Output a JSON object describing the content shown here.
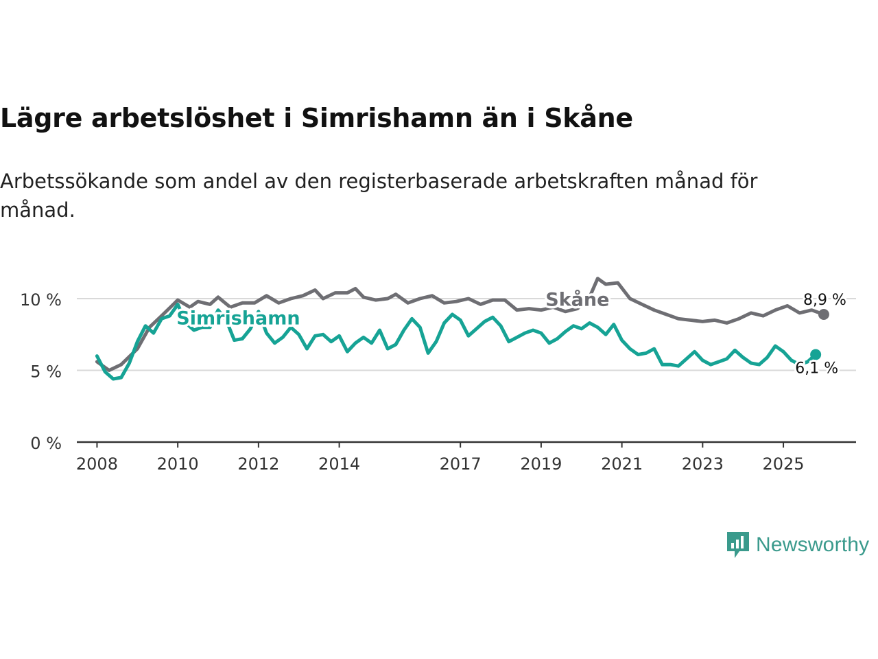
{
  "title": "Lägre arbetslöshet i Simrishamn än i Skåne",
  "subtitle": "Arbetssökande som andel av den registerbaserade arbetskraften månad för månad.",
  "brand": {
    "name": "Newsworthy",
    "color": "#3a9a8c"
  },
  "chart_data": {
    "type": "line",
    "x_unit": "year",
    "xlim": [
      2007.5,
      2026.8
    ],
    "ylim": [
      0,
      12
    ],
    "y_ticks": [
      0,
      5,
      10
    ],
    "y_tick_labels": [
      "0 %",
      "5 %",
      "10 %"
    ],
    "x_ticks": [
      2008,
      2010,
      2012,
      2014,
      2017,
      2019,
      2021,
      2023,
      2025
    ],
    "x_tick_labels": [
      "2008",
      "2010",
      "2012",
      "2014",
      "2017",
      "2019",
      "2021",
      "2023",
      "2025"
    ],
    "grid": true,
    "series": [
      {
        "name": "Skåne",
        "color": "#6e6e73",
        "label_at": [
          2019.9,
          9.5
        ],
        "end_label": "8,9 %",
        "x": [
          2008.0,
          2008.3,
          2008.6,
          2009.0,
          2009.3,
          2009.6,
          2010.0,
          2010.3,
          2010.5,
          2010.8,
          2011.0,
          2011.3,
          2011.6,
          2011.9,
          2012.2,
          2012.5,
          2012.8,
          2013.1,
          2013.4,
          2013.6,
          2013.9,
          2014.2,
          2014.4,
          2014.6,
          2014.9,
          2015.2,
          2015.4,
          2015.7,
          2016.0,
          2016.3,
          2016.6,
          2016.9,
          2017.2,
          2017.5,
          2017.8,
          2018.1,
          2018.4,
          2018.7,
          2019.0,
          2019.3,
          2019.6,
          2019.9,
          2020.2,
          2020.4,
          2020.6,
          2020.9,
          2021.2,
          2021.5,
          2021.8,
          2022.1,
          2022.4,
          2022.7,
          2023.0,
          2023.3,
          2023.6,
          2023.9,
          2024.2,
          2024.5,
          2024.8,
          2025.1,
          2025.4,
          2025.7,
          2026.0
        ],
        "values": [
          5.6,
          5.0,
          5.4,
          6.5,
          8.0,
          8.8,
          9.9,
          9.4,
          9.8,
          9.6,
          10.1,
          9.4,
          9.7,
          9.7,
          10.2,
          9.7,
          10.0,
          10.2,
          10.6,
          10.0,
          10.4,
          10.4,
          10.7,
          10.1,
          9.9,
          10.0,
          10.3,
          9.7,
          10.0,
          10.2,
          9.7,
          9.8,
          10.0,
          9.6,
          9.9,
          9.9,
          9.2,
          9.3,
          9.2,
          9.4,
          9.1,
          9.3,
          10.1,
          11.4,
          11.0,
          11.1,
          10.0,
          9.6,
          9.2,
          8.9,
          8.6,
          8.5,
          8.4,
          8.5,
          8.3,
          8.6,
          9.0,
          8.8,
          9.2,
          9.5,
          9.0,
          9.2,
          8.9
        ]
      },
      {
        "name": "Simrishamn",
        "color": "#16a395",
        "label_at": [
          2011.5,
          8.2
        ],
        "end_label": "6,1 %",
        "x": [
          2008.0,
          2008.2,
          2008.4,
          2008.6,
          2008.8,
          2009.0,
          2009.2,
          2009.4,
          2009.6,
          2009.8,
          2010.0,
          2010.2,
          2010.4,
          2010.6,
          2010.8,
          2011.0,
          2011.2,
          2011.4,
          2011.6,
          2011.8,
          2012.0,
          2012.2,
          2012.4,
          2012.6,
          2012.8,
          2013.0,
          2013.2,
          2013.4,
          2013.6,
          2013.8,
          2014.0,
          2014.2,
          2014.4,
          2014.6,
          2014.8,
          2015.0,
          2015.2,
          2015.4,
          2015.6,
          2015.8,
          2016.0,
          2016.2,
          2016.4,
          2016.6,
          2016.8,
          2017.0,
          2017.2,
          2017.4,
          2017.6,
          2017.8,
          2018.0,
          2018.2,
          2018.4,
          2018.6,
          2018.8,
          2019.0,
          2019.2,
          2019.4,
          2019.6,
          2019.8,
          2020.0,
          2020.2,
          2020.4,
          2020.6,
          2020.8,
          2021.0,
          2021.2,
          2021.4,
          2021.6,
          2021.8,
          2022.0,
          2022.2,
          2022.4,
          2022.6,
          2022.8,
          2023.0,
          2023.2,
          2023.4,
          2023.6,
          2023.8,
          2024.0,
          2024.2,
          2024.4,
          2024.6,
          2024.8,
          2025.0,
          2025.2,
          2025.4,
          2025.6,
          2025.8
        ],
        "values": [
          6.0,
          4.9,
          4.4,
          4.5,
          5.5,
          7.0,
          8.1,
          7.6,
          8.6,
          8.8,
          9.6,
          8.3,
          7.8,
          8.0,
          8.0,
          9.2,
          8.5,
          7.1,
          7.2,
          7.9,
          9.1,
          7.6,
          6.9,
          7.3,
          8.0,
          7.5,
          6.5,
          7.4,
          7.5,
          7.0,
          7.4,
          6.3,
          6.9,
          7.3,
          6.9,
          7.8,
          6.5,
          6.8,
          7.8,
          8.6,
          8.0,
          6.2,
          7.0,
          8.3,
          8.9,
          8.5,
          7.4,
          7.9,
          8.4,
          8.7,
          8.1,
          7.0,
          7.3,
          7.6,
          7.8,
          7.6,
          6.9,
          7.2,
          7.7,
          8.1,
          7.9,
          8.3,
          8.0,
          7.5,
          8.2,
          7.1,
          6.5,
          6.1,
          6.2,
          6.5,
          5.4,
          5.4,
          5.3,
          5.8,
          6.3,
          5.7,
          5.4,
          5.6,
          5.8,
          6.4,
          5.9,
          5.5,
          5.4,
          5.9,
          6.7,
          6.3,
          5.7,
          5.4,
          5.6,
          6.1
        ]
      }
    ]
  }
}
